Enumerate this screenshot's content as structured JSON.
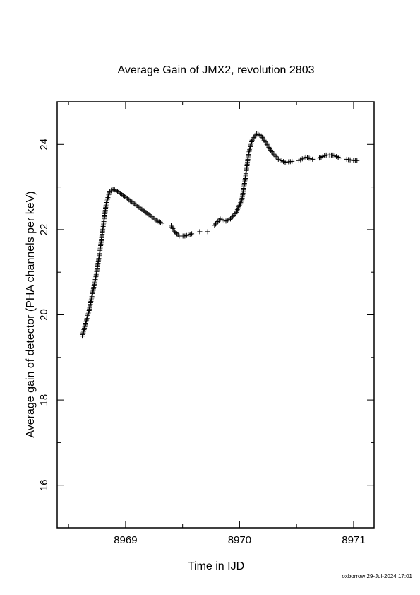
{
  "chart_data": {
    "type": "scatter",
    "title": "Average Gain of JMX2, revolution 2803",
    "xlabel": "Time in IJD",
    "ylabel": "Average gain of detector (PHA channels per keV)",
    "xlim": [
      8968.4,
      8971.18
    ],
    "ylim": [
      15,
      25
    ],
    "x_ticks": [
      8969,
      8970,
      8971
    ],
    "y_ticks": [
      16,
      18,
      20,
      22,
      24
    ],
    "marker": "plus",
    "grid": false,
    "series": [
      {
        "points": [
          [
            8968.62,
            19.5
          ],
          [
            8968.65,
            19.8
          ],
          [
            8968.68,
            20.1
          ],
          [
            8968.71,
            20.5
          ],
          [
            8968.74,
            20.9
          ],
          [
            8968.77,
            21.4
          ],
          [
            8968.8,
            22.0
          ],
          [
            8968.83,
            22.6
          ],
          [
            8968.86,
            22.9
          ],
          [
            8968.89,
            22.95
          ],
          [
            8968.93,
            22.9
          ],
          [
            8968.98,
            22.8
          ],
          [
            8969.03,
            22.7
          ],
          [
            8969.08,
            22.6
          ],
          [
            8969.13,
            22.5
          ],
          [
            8969.18,
            22.4
          ],
          [
            8969.23,
            22.3
          ],
          [
            8969.28,
            22.2
          ],
          [
            8969.32,
            22.15
          ],
          [
            8969.4,
            22.1
          ],
          [
            8969.43,
            21.95
          ],
          [
            8969.47,
            21.85
          ],
          [
            8969.52,
            21.85
          ],
          [
            8969.58,
            21.9
          ],
          [
            8969.65,
            21.95
          ],
          [
            8969.72,
            21.95
          ],
          [
            8969.78,
            22.1
          ],
          [
            8969.83,
            22.25
          ],
          [
            8969.88,
            22.2
          ],
          [
            8969.92,
            22.25
          ],
          [
            8969.97,
            22.4
          ],
          [
            8970.02,
            22.7
          ],
          [
            8970.05,
            23.2
          ],
          [
            8970.08,
            23.8
          ],
          [
            8970.11,
            24.1
          ],
          [
            8970.15,
            24.25
          ],
          [
            8970.19,
            24.2
          ],
          [
            8970.24,
            24.0
          ],
          [
            8970.29,
            23.8
          ],
          [
            8970.34,
            23.65
          ],
          [
            8970.4,
            23.58
          ],
          [
            8970.46,
            23.6
          ],
          [
            8970.52,
            23.62
          ],
          [
            8970.58,
            23.7
          ],
          [
            8970.64,
            23.65
          ],
          [
            8970.7,
            23.68
          ],
          [
            8970.76,
            23.75
          ],
          [
            8970.82,
            23.75
          ],
          [
            8970.88,
            23.68
          ],
          [
            8970.94,
            23.65
          ],
          [
            8971.0,
            23.62
          ],
          [
            8971.03,
            23.62
          ]
        ]
      }
    ]
  },
  "footer": {
    "stamp": "oxborrow 29-Jul-2024 17:01"
  }
}
